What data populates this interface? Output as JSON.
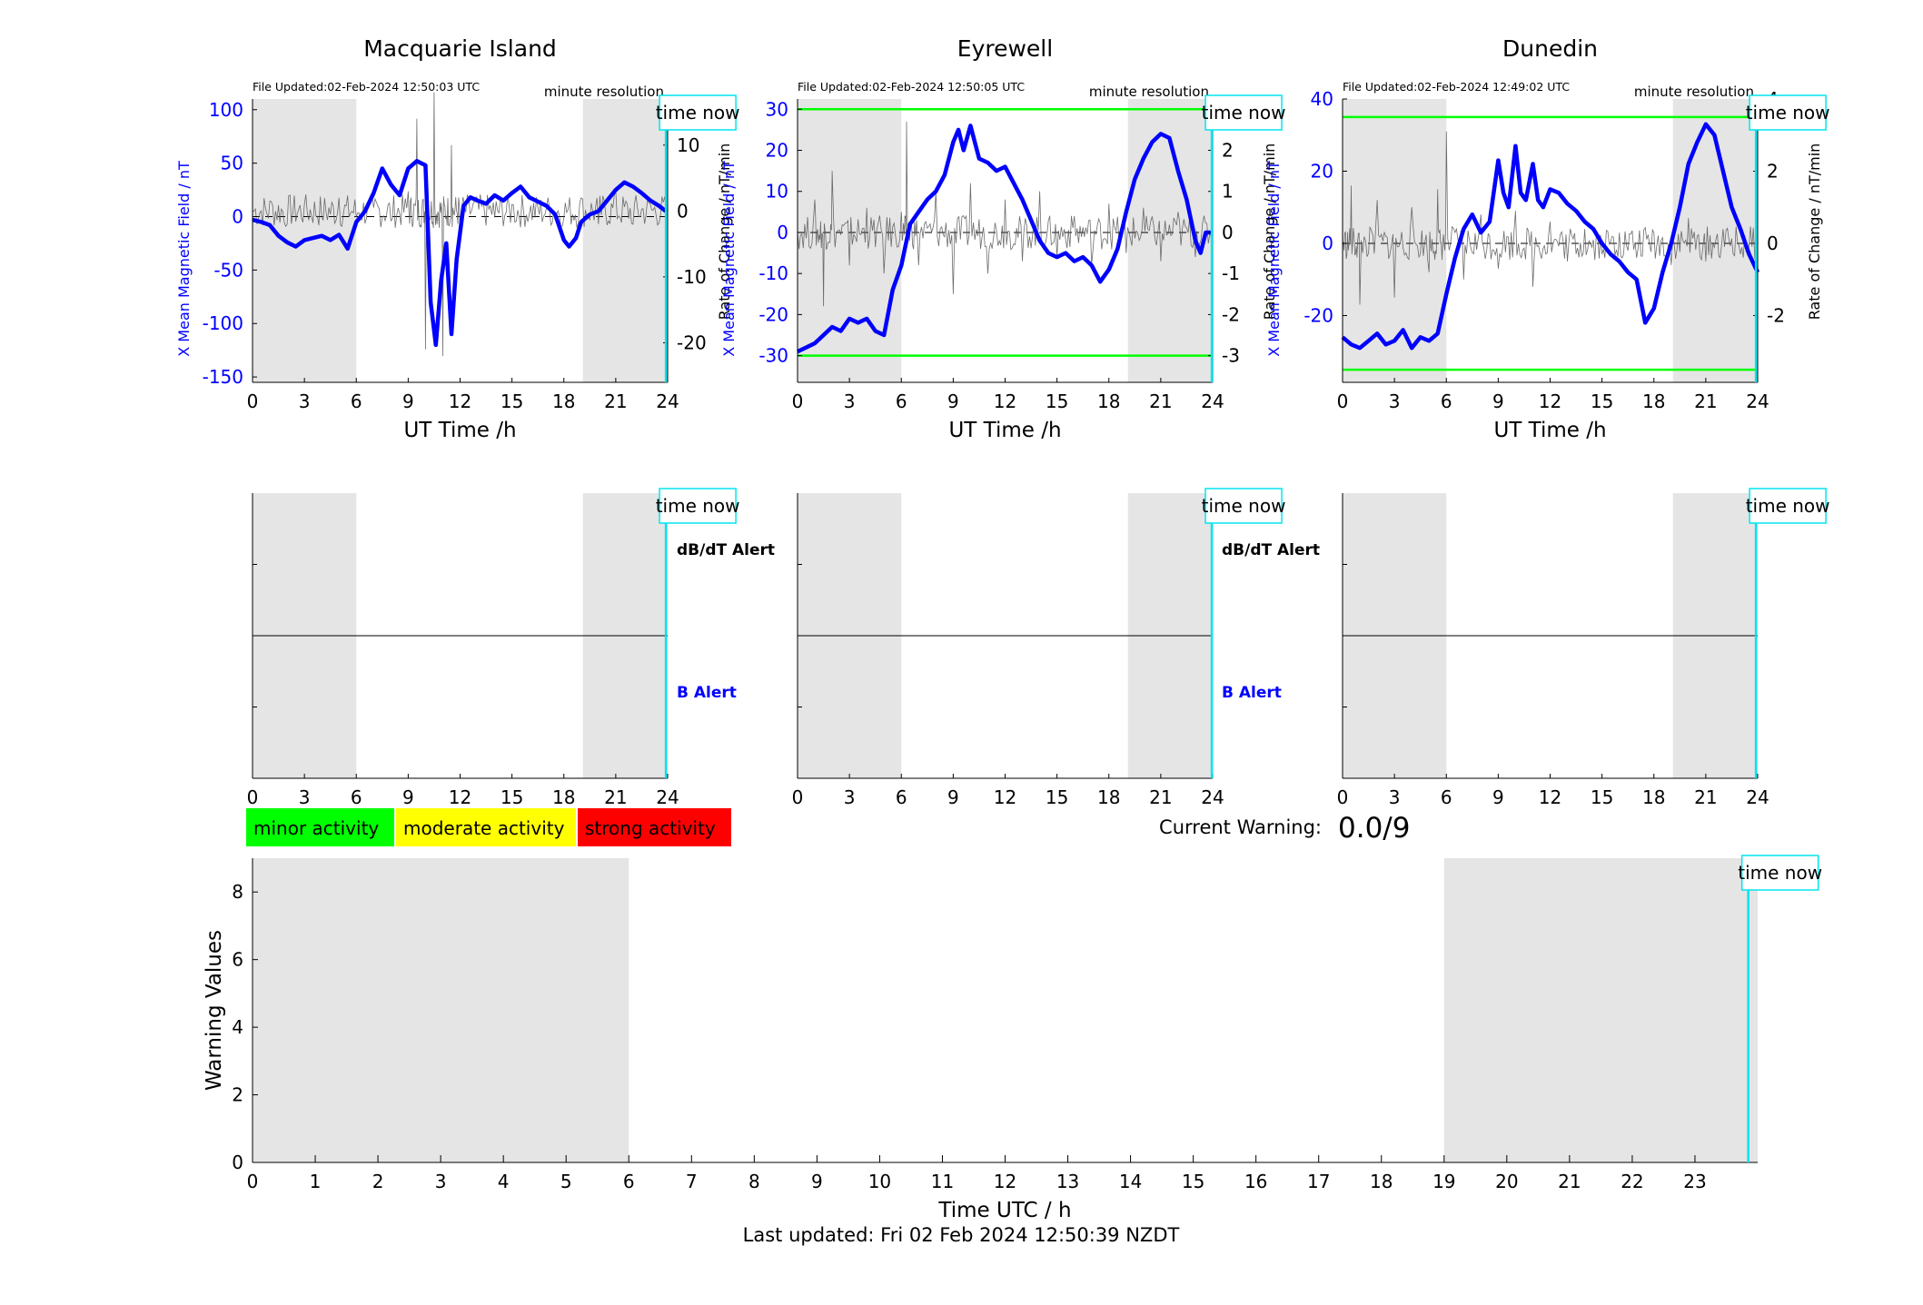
{
  "figure": {
    "last_updated": "Last updated: Fri 02 Feb 2024 12:50:39 NZDT",
    "current_warning_label": "Current Warning:",
    "current_warning_value": "0.0/9",
    "time_now_label": "time now",
    "legend": [
      {
        "label": "minor activity",
        "color": "#00ff00"
      },
      {
        "label": "moderate activity",
        "color": "#ffff00"
      },
      {
        "label": "strong activity",
        "color": "#ff0000"
      }
    ],
    "colors": {
      "field": "#0000ff",
      "rate": "#000000",
      "threshold": "#00ff00",
      "time_now": "#00e5ee",
      "night_shade": "#e5e5e5"
    }
  },
  "chart_data": [
    {
      "type": "line",
      "title": "Macquarie Island",
      "file_updated": "File Updated:02-Feb-2024 12:50:03 UTC",
      "resolution": "minute resolution",
      "xlabel": "UT Time /h",
      "ylabel": "X Mean Magnetic Field / nT",
      "ylabel_right": "Rate of Change / nT/min",
      "xlim": [
        0,
        24
      ],
      "ylim": [
        -155,
        110
      ],
      "ylim_right": [
        -26,
        17
      ],
      "x_ticks": [
        0,
        3,
        6,
        9,
        12,
        15,
        18,
        21,
        24
      ],
      "y_ticks": [
        -150,
        -100,
        -50,
        0,
        50,
        100
      ],
      "y_ticks_right": [
        -20,
        -10,
        0,
        10
      ],
      "night_shading": [
        [
          0,
          6
        ],
        [
          19.1,
          24
        ]
      ],
      "time_now": 23.9,
      "field_series": {
        "name": "",
        "x": [
          0,
          0.5,
          1,
          1.5,
          2,
          2.5,
          3,
          3.5,
          4,
          4.5,
          5,
          5.5,
          6,
          6.5,
          7,
          7.5,
          8,
          8.5,
          9,
          9.5,
          10,
          10.3,
          10.6,
          10.9,
          11.2,
          11.5,
          11.8,
          12.2,
          12.6,
          13,
          13.5,
          14,
          14.5,
          15,
          15.5,
          16,
          16.5,
          17,
          17.5,
          18,
          18.3,
          18.7,
          19,
          19.5,
          20,
          20.5,
          21,
          21.5,
          22,
          22.5,
          23,
          23.5,
          23.9
        ],
        "y": [
          -3,
          -5,
          -8,
          -18,
          -24,
          -28,
          -22,
          -20,
          -18,
          -22,
          -17,
          -30,
          -5,
          5,
          22,
          45,
          30,
          20,
          45,
          52,
          48,
          -80,
          -120,
          -60,
          -25,
          -110,
          -40,
          10,
          18,
          15,
          12,
          20,
          15,
          22,
          28,
          18,
          14,
          10,
          2,
          -22,
          -28,
          -20,
          -5,
          2,
          5,
          15,
          25,
          32,
          28,
          22,
          15,
          10,
          5
        ]
      },
      "rate_series": {
        "name": "",
        "x": [
          0,
          1,
          2,
          3,
          4,
          5,
          6,
          7,
          8,
          9,
          9.5,
          10,
          10.5,
          11,
          11.5,
          12,
          13,
          14,
          15,
          16,
          17,
          18,
          19,
          20,
          21,
          22,
          23,
          24
        ],
        "y": [
          0,
          1.5,
          -2,
          1,
          -1,
          2,
          -1,
          0.5,
          -1.5,
          3,
          14,
          -21,
          18,
          -22,
          10,
          -3,
          2,
          -1,
          1,
          -0.5,
          0.5,
          -1,
          2,
          -2,
          3,
          -2,
          1,
          0
        ]
      },
      "alert_labels": [
        "dB/dT Alert",
        "B Alert"
      ]
    },
    {
      "type": "line",
      "title": "Eyrewell",
      "file_updated": "File Updated:02-Feb-2024 12:50:05 UTC",
      "resolution": "minute resolution",
      "xlabel": "UT Time /h",
      "ylabel": "X Mean Magnetic Field / nT",
      "ylabel_right": "Rate of Change / nT/min",
      "xlim": [
        0,
        24
      ],
      "ylim": [
        -36.5,
        32.5
      ],
      "ylim_right": [
        -3.65,
        3.25
      ],
      "x_ticks": [
        0,
        3,
        6,
        9,
        12,
        15,
        18,
        21,
        24
      ],
      "y_ticks": [
        -30,
        -20,
        -10,
        0,
        10,
        20,
        30
      ],
      "y_ticks_right": [
        -3,
        -2,
        -1,
        0,
        1,
        2,
        3
      ],
      "thresholds": [
        30,
        -30
      ],
      "night_shading": [
        [
          0,
          6
        ],
        [
          19.1,
          24
        ]
      ],
      "time_now": 23.95,
      "field_series": {
        "name": "",
        "x": [
          0,
          0.5,
          1,
          1.5,
          2,
          2.5,
          3,
          3.5,
          4,
          4.5,
          5,
          5.5,
          6,
          6.5,
          7,
          7.5,
          8,
          8.5,
          9,
          9.3,
          9.6,
          10,
          10.5,
          11,
          11.5,
          12,
          12.5,
          13,
          13.5,
          14,
          14.5,
          15,
          15.5,
          16,
          16.5,
          17,
          17.5,
          18,
          18.5,
          19,
          19.5,
          20,
          20.5,
          21,
          21.5,
          22,
          22.5,
          23,
          23.3,
          23.6,
          24
        ],
        "y": [
          -29,
          -28,
          -27,
          -25,
          -23,
          -24,
          -21,
          -22,
          -21,
          -24,
          -25,
          -14,
          -8,
          2,
          5,
          8,
          10,
          14,
          22,
          25,
          20,
          26,
          18,
          17,
          15,
          16,
          12,
          8,
          3,
          -2,
          -5,
          -6,
          -5,
          -7,
          -6,
          -8,
          -12,
          -9,
          -4,
          5,
          13,
          18,
          22,
          24,
          23,
          15,
          8,
          -2,
          -5,
          0,
          0
        ]
      },
      "rate_series": {
        "name": "",
        "x": [
          0,
          1,
          1.5,
          2,
          3,
          4,
          5,
          6,
          6.3,
          7,
          8,
          9,
          10,
          11,
          12,
          13,
          14,
          15,
          16,
          17,
          18,
          19,
          20,
          21,
          22,
          23,
          24
        ],
        "y": [
          0,
          0.8,
          -1.8,
          1.5,
          -0.8,
          0.6,
          -1,
          0.5,
          2.7,
          -0.8,
          1,
          -1.5,
          1.2,
          -1,
          0.8,
          -0.7,
          1,
          -0.6,
          0.4,
          -0.8,
          0.7,
          -0.5,
          0.6,
          -0.7,
          0.5,
          -0.6,
          0
        ]
      },
      "alert_labels": [
        "dB/dT Alert",
        "B Alert"
      ]
    },
    {
      "type": "line",
      "title": "Dunedin",
      "file_updated": "File Updated:02-Feb-2024 12:49:02 UTC",
      "resolution": "minute resolution",
      "xlabel": "UT Time /h",
      "ylabel": "X Mean Magnetic Field / nT",
      "ylabel_right": "Rate of Change / nT/min",
      "xlim": [
        0,
        24
      ],
      "ylim": [
        -38.5,
        40
      ],
      "ylim_right": [
        -3.85,
        4
      ],
      "x_ticks": [
        0,
        3,
        6,
        9,
        12,
        15,
        18,
        21,
        24
      ],
      "y_ticks": [
        -20,
        0,
        20,
        40
      ],
      "y_ticks_right": [
        -2,
        0,
        2,
        4
      ],
      "thresholds": [
        35,
        -35
      ],
      "night_shading": [
        [
          0,
          6
        ],
        [
          19.1,
          24
        ]
      ],
      "time_now": 23.9,
      "field_series": {
        "name": "",
        "x": [
          0,
          0.5,
          1,
          1.5,
          2,
          2.5,
          3,
          3.5,
          4,
          4.5,
          5,
          5.5,
          6,
          6.5,
          7,
          7.5,
          8,
          8.5,
          9,
          9.3,
          9.6,
          10,
          10.3,
          10.6,
          11,
          11.3,
          11.6,
          12,
          12.5,
          13,
          13.5,
          14,
          14.5,
          15,
          15.5,
          16,
          16.5,
          17,
          17.5,
          18,
          18.5,
          19,
          19.5,
          20,
          20.5,
          21,
          21.5,
          22,
          22.5,
          23,
          23.5,
          24
        ],
        "y": [
          -26,
          -28,
          -29,
          -27,
          -25,
          -28,
          -27,
          -24,
          -29,
          -26,
          -27,
          -25,
          -14,
          -4,
          4,
          8,
          3,
          6,
          23,
          14,
          10,
          27,
          14,
          12,
          22,
          12,
          10,
          15,
          14,
          11,
          9,
          6,
          4,
          0,
          -3,
          -5,
          -8,
          -10,
          -22,
          -18,
          -8,
          0,
          10,
          22,
          28,
          33,
          30,
          20,
          10,
          4,
          -3,
          -8
        ]
      },
      "rate_series": {
        "name": "",
        "x": [
          0,
          0.5,
          1,
          2,
          3,
          4,
          5,
          5.5,
          6,
          7,
          8,
          9,
          10,
          11,
          12,
          13,
          14,
          15,
          16,
          17,
          18,
          19,
          20,
          21,
          22,
          23,
          24
        ],
        "y": [
          0,
          1.6,
          -1.7,
          1.2,
          -1.5,
          1,
          -0.8,
          1.5,
          3.1,
          -1,
          0.8,
          -0.7,
          0.9,
          -1.2,
          0.6,
          -0.5,
          0.4,
          -0.3,
          0.3,
          -0.4,
          0.3,
          -0.6,
          0.7,
          -0.5,
          0.4,
          -0.3,
          0
        ]
      },
      "alert_labels": []
    },
    {
      "type": "bar",
      "title": "",
      "xlabel": "Time UTC / h",
      "ylabel": "Warning Values",
      "xlim": [
        0,
        24
      ],
      "ylim": [
        0,
        9
      ],
      "x_ticks": [
        0,
        1,
        2,
        3,
        4,
        5,
        6,
        7,
        8,
        9,
        10,
        11,
        12,
        13,
        14,
        15,
        16,
        17,
        18,
        19,
        20,
        21,
        22,
        23
      ],
      "y_ticks": [
        0,
        2,
        4,
        6,
        8
      ],
      "night_shading": [
        [
          0,
          6
        ],
        [
          19,
          24
        ]
      ],
      "time_now": 23.85,
      "values": []
    }
  ]
}
